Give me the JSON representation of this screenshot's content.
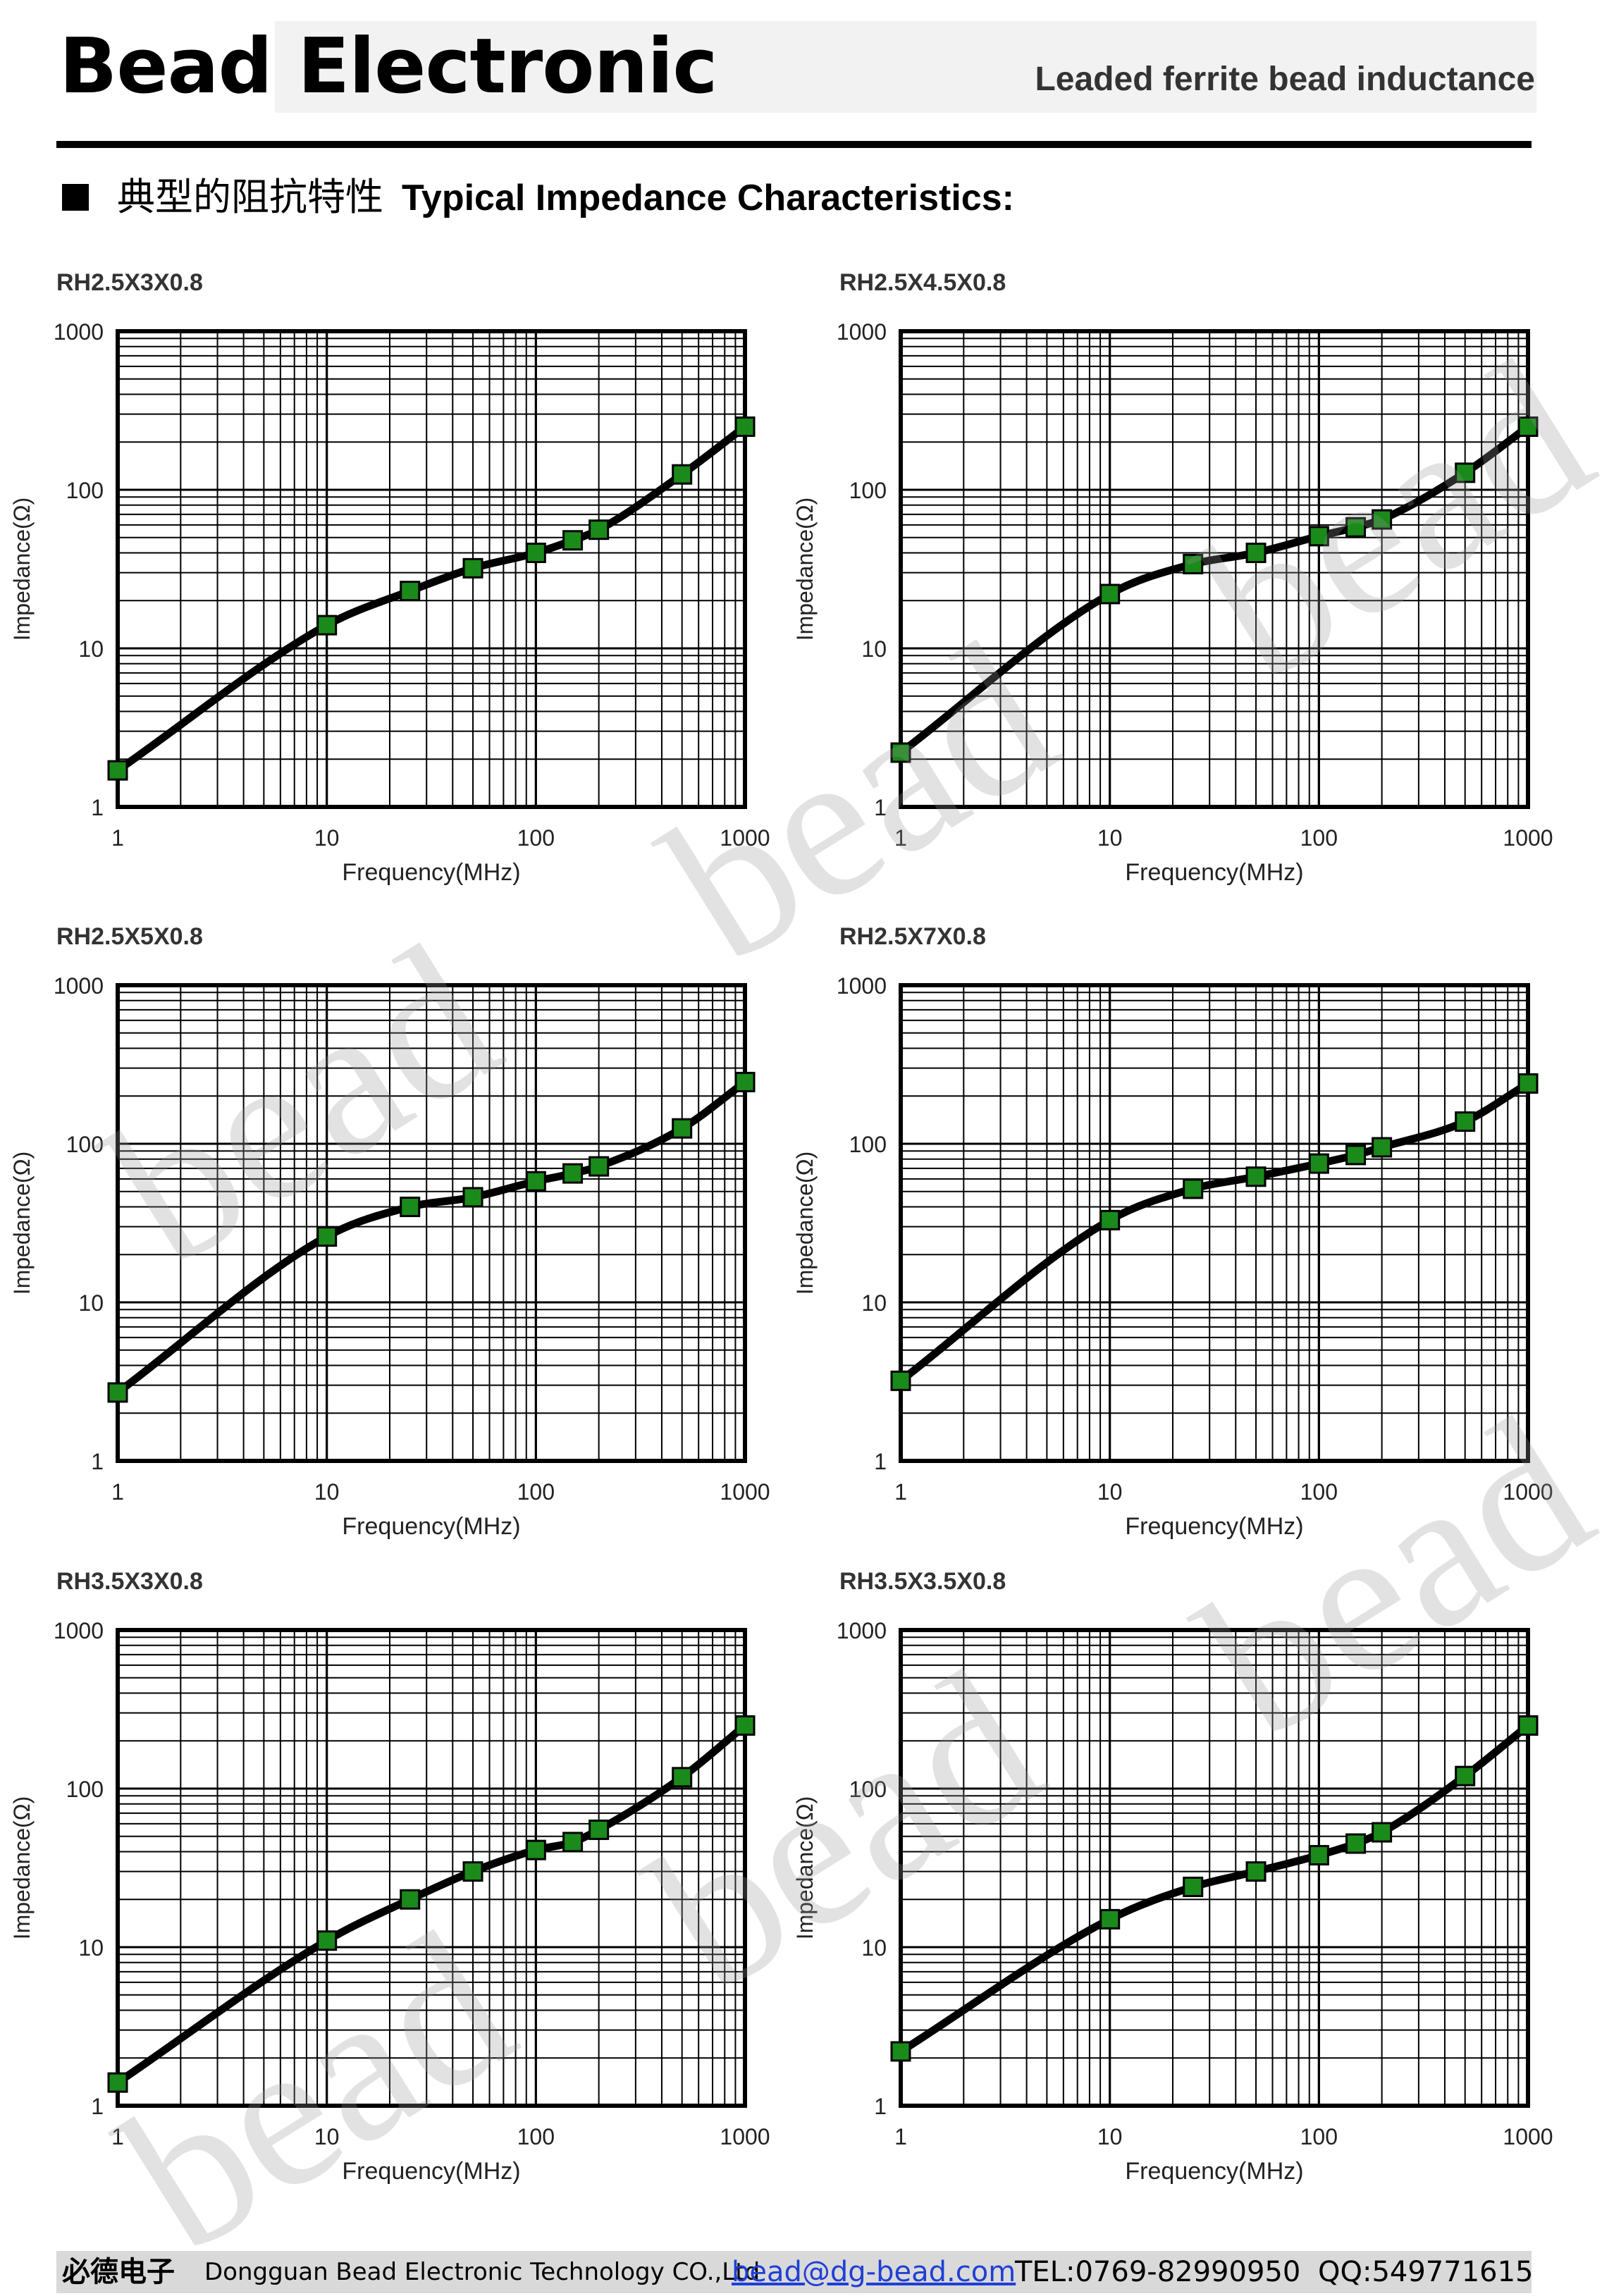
{
  "header": {
    "brand": "Bead Electronic",
    "subtitle": "Leaded ferrite bead inductance"
  },
  "section": {
    "title_cn": "典型的阻抗特性",
    "title_en": "Typical Impedance Characteristics:"
  },
  "watermark_text": "bead",
  "chart_data": [
    {
      "type": "line",
      "title": "RH2.5X3X0.8",
      "xlabel": "Frequency(MHz)",
      "ylabel": "Impedance(Ω)",
      "xscale": "log",
      "yscale": "log",
      "xlim": [
        1,
        1000
      ],
      "ylim": [
        1,
        1000
      ],
      "xticks": [
        "1",
        "10",
        "100",
        "1000"
      ],
      "yticks": [
        "1",
        "10",
        "100",
        "1000"
      ],
      "grid": true,
      "marker_color": "#1a8a1a",
      "x": [
        1,
        10,
        25,
        50,
        100,
        150,
        200,
        500,
        1000
      ],
      "y": [
        1.7,
        14,
        23,
        32,
        40,
        48,
        56,
        125,
        250
      ]
    },
    {
      "type": "line",
      "title": "RH2.5X4.5X0.8",
      "xlabel": "Frequency(MHz)",
      "ylabel": "Impedance(Ω)",
      "xscale": "log",
      "yscale": "log",
      "xlim": [
        1,
        1000
      ],
      "ylim": [
        1,
        1000
      ],
      "xticks": [
        "1",
        "10",
        "100",
        "1000"
      ],
      "yticks": [
        "1",
        "10",
        "100",
        "1000"
      ],
      "grid": true,
      "marker_color": "#1a8a1a",
      "x": [
        1,
        10,
        25,
        50,
        100,
        150,
        200,
        500,
        1000
      ],
      "y": [
        2.2,
        22,
        34,
        40,
        51,
        58,
        65,
        128,
        250
      ]
    },
    {
      "type": "line",
      "title": "RH2.5X5X0.8",
      "xlabel": "Frequency(MHz)",
      "ylabel": "Impedance(Ω)",
      "xscale": "log",
      "yscale": "log",
      "xlim": [
        1,
        1000
      ],
      "ylim": [
        1,
        1000
      ],
      "xticks": [
        "1",
        "10",
        "100",
        "1000"
      ],
      "yticks": [
        "1",
        "10",
        "100",
        "1000"
      ],
      "grid": true,
      "marker_color": "#1a8a1a",
      "x": [
        1,
        10,
        25,
        50,
        100,
        150,
        200,
        500,
        1000
      ],
      "y": [
        2.7,
        26,
        40,
        46,
        58,
        65,
        72,
        125,
        245
      ]
    },
    {
      "type": "line",
      "title": "RH2.5X7X0.8",
      "xlabel": "Frequency(MHz)",
      "ylabel": "Impedance(Ω)",
      "xscale": "log",
      "yscale": "log",
      "xlim": [
        1,
        1000
      ],
      "ylim": [
        1,
        1000
      ],
      "xticks": [
        "1",
        "10",
        "100",
        "1000"
      ],
      "yticks": [
        "1",
        "10",
        "100",
        "1000"
      ],
      "grid": true,
      "marker_color": "#1a8a1a",
      "x": [
        1,
        10,
        25,
        50,
        100,
        150,
        200,
        500,
        1000
      ],
      "y": [
        3.2,
        33,
        52,
        62,
        75,
        85,
        95,
        138,
        240
      ]
    },
    {
      "type": "line",
      "title": "RH3.5X3X0.8",
      "xlabel": "Frequency(MHz)",
      "ylabel": "Impedance(Ω)",
      "xscale": "log",
      "yscale": "log",
      "xlim": [
        1,
        1000
      ],
      "ylim": [
        1,
        1000
      ],
      "xticks": [
        "1",
        "10",
        "100",
        "1000"
      ],
      "yticks": [
        "1",
        "10",
        "100",
        "1000"
      ],
      "grid": true,
      "marker_color": "#1a8a1a",
      "x": [
        1,
        10,
        25,
        50,
        100,
        150,
        200,
        500,
        1000
      ],
      "y": [
        1.4,
        11,
        20,
        30,
        41,
        46,
        55,
        118,
        250
      ]
    },
    {
      "type": "line",
      "title": "RH3.5X3.5X0.8",
      "xlabel": "Frequency(MHz)",
      "ylabel": "Impedance(Ω)",
      "xscale": "log",
      "yscale": "log",
      "xlim": [
        1,
        1000
      ],
      "ylim": [
        1,
        1000
      ],
      "xticks": [
        "1",
        "10",
        "100",
        "1000"
      ],
      "yticks": [
        "1",
        "10",
        "100",
        "1000"
      ],
      "grid": true,
      "marker_color": "#1a8a1a",
      "x": [
        1,
        10,
        25,
        50,
        100,
        150,
        200,
        500,
        1000
      ],
      "y": [
        2.2,
        15,
        24,
        30,
        38,
        45,
        53,
        120,
        250
      ]
    }
  ],
  "footer": {
    "company_cn": "必德电子",
    "company_en": "Dongguan Bead Electronic Technology CO.,Ltd",
    "email": "bead@dg-bead.com",
    "tel": "TEL:0769-82990950",
    "qq": "QQ:549771615"
  }
}
